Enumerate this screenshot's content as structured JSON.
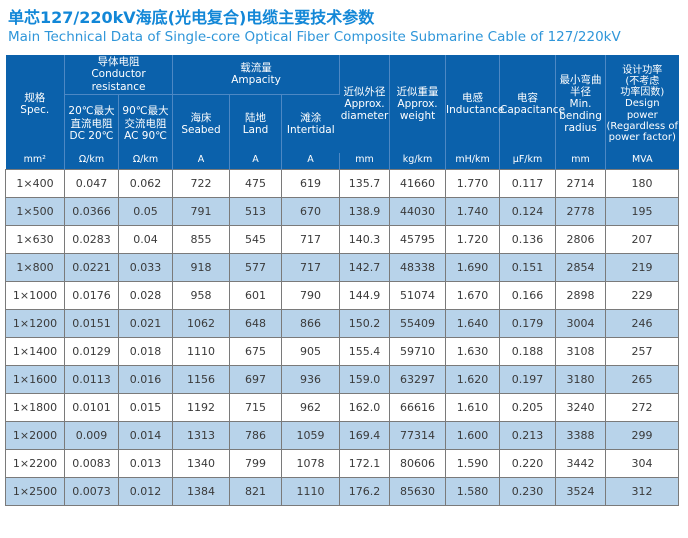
{
  "title": {
    "zh": "单芯127/220kV海底(光电复合)电缆主要技术参数",
    "en": "Main Technical Data of Single-core Optical Fiber Composite Submarine Cable of 127/220kV"
  },
  "colors": {
    "title_zh": "#1287d7",
    "title_en": "#2f96d9",
    "header_bg": "#0b61ab",
    "header_divider": "#4d88c4",
    "stripe_blue": "#b8d3ea",
    "body_border": "#7a7a7a",
    "body_text": "#3a3a3a"
  },
  "table": {
    "header": {
      "spec": "规格\nSpec.",
      "conductor_resistance": "导体电阻\nConductor resistance",
      "dc": "20℃最大\n直流电阻\nDC 20℃",
      "ac": "90℃最大\n交流电阻\nAC 90℃",
      "ampacity": "载流量\nAmpacity",
      "seabed": "海床\nSeabed",
      "land": "陆地\nLand",
      "intertidal": "滩涂\nIntertidal",
      "diameter": "近似外径\nApprox.\ndiameter",
      "weight": "近似重量\nApprox.\nweight",
      "inductance": "电感\nInductance",
      "capacitance": "电容\nCapacitance",
      "bending": "最小弯曲\n半径\nMin.\nbending\nradius",
      "power": "设计功率\n(不考虑\n功率因数)\nDesign\npower\n(Regardless of\npower factor)"
    },
    "units": [
      "mm²",
      "Ω/km",
      "Ω/km",
      "A",
      "A",
      "A",
      "mm",
      "kg/km",
      "mH/km",
      "μF/km",
      "mm",
      "MVA"
    ],
    "rows": [
      [
        "1×400",
        "0.047",
        "0.062",
        "722",
        "475",
        "619",
        "135.7",
        "41660",
        "1.770",
        "0.117",
        "2714",
        "180"
      ],
      [
        "1×500",
        "0.0366",
        "0.05",
        "791",
        "513",
        "670",
        "138.9",
        "44030",
        "1.740",
        "0.124",
        "2778",
        "195"
      ],
      [
        "1×630",
        "0.0283",
        "0.04",
        "855",
        "545",
        "717",
        "140.3",
        "45795",
        "1.720",
        "0.136",
        "2806",
        "207"
      ],
      [
        "1×800",
        "0.0221",
        "0.033",
        "918",
        "577",
        "717",
        "142.7",
        "48338",
        "1.690",
        "0.151",
        "2854",
        "219"
      ],
      [
        "1×1000",
        "0.0176",
        "0.028",
        "958",
        "601",
        "790",
        "144.9",
        "51074",
        "1.670",
        "0.166",
        "2898",
        "229"
      ],
      [
        "1×1200",
        "0.0151",
        "0.021",
        "1062",
        "648",
        "866",
        "150.2",
        "55409",
        "1.640",
        "0.179",
        "3004",
        "246"
      ],
      [
        "1×1400",
        "0.0129",
        "0.018",
        "1110",
        "675",
        "905",
        "155.4",
        "59710",
        "1.630",
        "0.188",
        "3108",
        "257"
      ],
      [
        "1×1600",
        "0.0113",
        "0.016",
        "1156",
        "697",
        "936",
        "159.0",
        "63297",
        "1.620",
        "0.197",
        "3180",
        "265"
      ],
      [
        "1×1800",
        "0.0101",
        "0.015",
        "1192",
        "715",
        "962",
        "162.0",
        "66616",
        "1.610",
        "0.205",
        "3240",
        "272"
      ],
      [
        "1×2000",
        "0.009",
        "0.014",
        "1313",
        "786",
        "1059",
        "169.4",
        "77314",
        "1.600",
        "0.213",
        "3388",
        "299"
      ],
      [
        "1×2200",
        "0.0083",
        "0.013",
        "1340",
        "799",
        "1078",
        "172.1",
        "80606",
        "1.590",
        "0.220",
        "3442",
        "304"
      ],
      [
        "1×2500",
        "0.0073",
        "0.012",
        "1384",
        "821",
        "1110",
        "176.2",
        "85630",
        "1.580",
        "0.230",
        "3524",
        "312"
      ]
    ]
  }
}
